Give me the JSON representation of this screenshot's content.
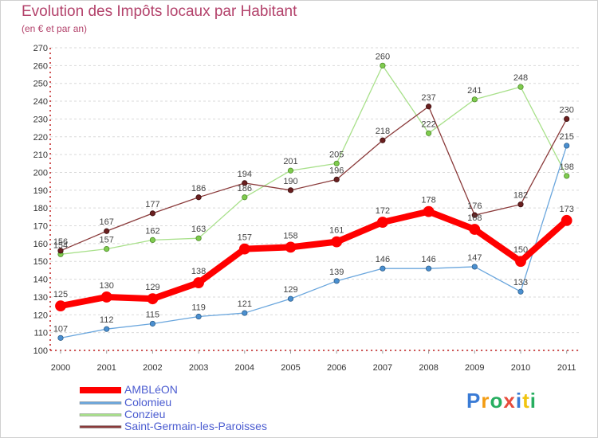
{
  "header": {
    "title": "Evolution des Impôts locaux par Habitant",
    "subtitle": "(en € et par an)"
  },
  "logo": {
    "text": "Proxiti"
  },
  "colors": {
    "AMBLéON": "#ff0000",
    "Colomieu": "#5b9bd5",
    "Conzieu": "#8fd66a",
    "Saint-Germain-les-Paroisses": "#7a2a2a"
  },
  "chart_data": {
    "type": "line",
    "title": "Evolution des Impôts locaux par Habitant",
    "subtitle": "(en € et par an)",
    "xlabel": "",
    "ylabel": "",
    "x": [
      "2000",
      "2001",
      "2002",
      "2003",
      "2004",
      "2005",
      "2006",
      "2007",
      "2008",
      "2009",
      "2010",
      "2011"
    ],
    "ylim": [
      100,
      270
    ],
    "yticks": [
      100,
      110,
      120,
      130,
      140,
      150,
      160,
      170,
      180,
      190,
      200,
      210,
      220,
      230,
      240,
      250,
      260,
      270
    ],
    "grid": "horizontal dashed",
    "legend_position": "bottom-left",
    "series": [
      {
        "name": "AMBLéON",
        "values": [
          125,
          130,
          129,
          138,
          157,
          158,
          161,
          172,
          178,
          168,
          150,
          173
        ]
      },
      {
        "name": "Colomieu",
        "values": [
          107,
          112,
          115,
          119,
          121,
          129,
          139,
          146,
          146,
          147,
          133,
          215
        ]
      },
      {
        "name": "Conzieu",
        "values": [
          154,
          157,
          162,
          163,
          186,
          201,
          205,
          260,
          222,
          241,
          248,
          198
        ]
      },
      {
        "name": "Saint-Germain-les-Paroisses",
        "values": [
          156,
          167,
          177,
          186,
          194,
          190,
          196,
          218,
          237,
          176,
          182,
          230
        ]
      }
    ]
  }
}
